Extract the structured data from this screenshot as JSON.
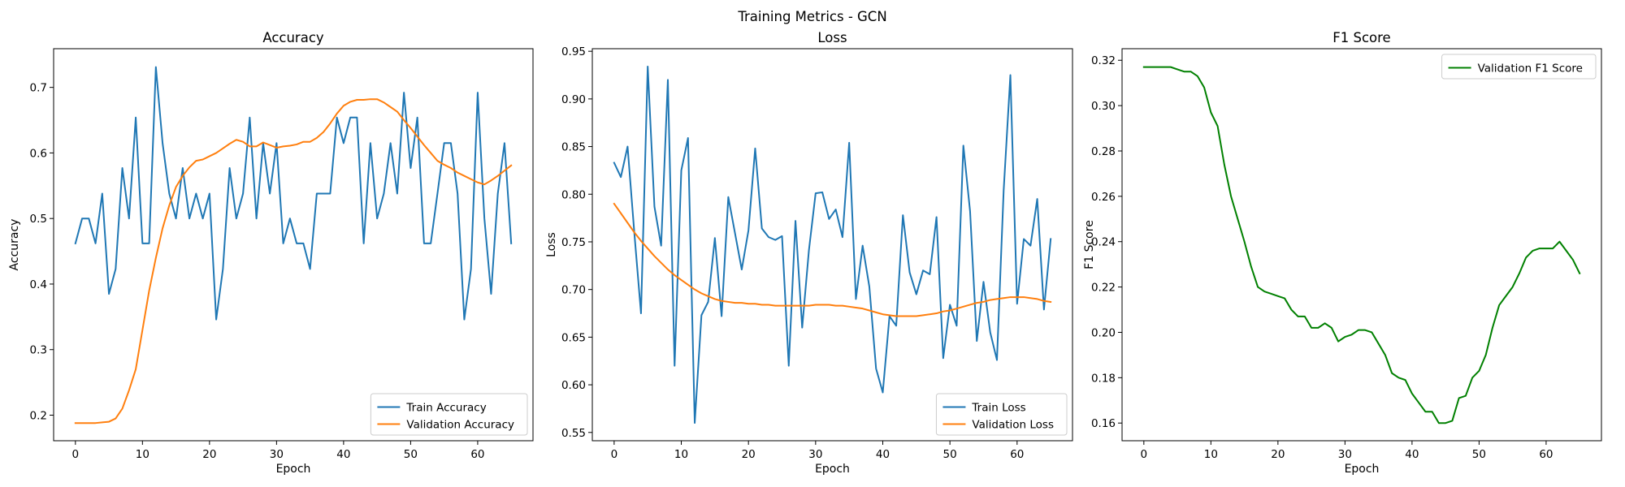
{
  "figure": {
    "suptitle": "Training Metrics - GCN"
  },
  "chart_data": [
    {
      "type": "line",
      "title": "Accuracy",
      "xlabel": "Epoch",
      "ylabel": "Accuracy",
      "xlim": [
        -3.25,
        68.25
      ],
      "ylim": [
        0.161,
        0.759
      ],
      "xticks": [
        0,
        10,
        20,
        30,
        40,
        50,
        60
      ],
      "yticks": [
        0.2,
        0.3,
        0.4,
        0.5,
        0.6,
        0.7
      ],
      "ytick_decimals": 1,
      "grid": false,
      "legend": "lower-right",
      "series": [
        {
          "name": "Train Accuracy",
          "color": "#1f77b4",
          "x": [
            0,
            1,
            2,
            3,
            4,
            5,
            6,
            7,
            8,
            9,
            10,
            11,
            12,
            13,
            14,
            15,
            16,
            17,
            18,
            19,
            20,
            21,
            22,
            23,
            24,
            25,
            26,
            27,
            28,
            29,
            30,
            31,
            32,
            33,
            34,
            35,
            36,
            37,
            38,
            39,
            40,
            41,
            42,
            43,
            44,
            45,
            46,
            47,
            48,
            49,
            50,
            51,
            52,
            53,
            54,
            55,
            56,
            57,
            58,
            59,
            60,
            61,
            62,
            63,
            64,
            65
          ],
          "y": [
            0.462,
            0.5,
            0.5,
            0.462,
            0.538,
            0.385,
            0.423,
            0.577,
            0.5,
            0.654,
            0.462,
            0.462,
            0.731,
            0.615,
            0.538,
            0.5,
            0.577,
            0.5,
            0.538,
            0.5,
            0.538,
            0.346,
            0.423,
            0.577,
            0.5,
            0.538,
            0.654,
            0.5,
            0.615,
            0.538,
            0.615,
            0.462,
            0.5,
            0.462,
            0.462,
            0.423,
            0.538,
            0.538,
            0.538,
            0.654,
            0.615,
            0.654,
            0.654,
            0.462,
            0.615,
            0.5,
            0.538,
            0.615,
            0.538,
            0.692,
            0.577,
            0.654,
            0.462,
            0.462,
            0.538,
            0.615,
            0.615,
            0.538,
            0.346,
            0.423,
            0.692,
            0.5,
            0.385,
            0.538,
            0.615,
            0.462
          ]
        },
        {
          "name": "Validation Accuracy",
          "color": "#ff7f0e",
          "x": [
            0,
            1,
            2,
            3,
            4,
            5,
            6,
            7,
            8,
            9,
            10,
            11,
            12,
            13,
            14,
            15,
            16,
            17,
            18,
            19,
            20,
            21,
            22,
            23,
            24,
            25,
            26,
            27,
            28,
            29,
            30,
            31,
            32,
            33,
            34,
            35,
            36,
            37,
            38,
            39,
            40,
            41,
            42,
            43,
            44,
            45,
            46,
            47,
            48,
            49,
            50,
            51,
            52,
            53,
            54,
            55,
            56,
            57,
            58,
            59,
            60,
            61,
            62,
            63,
            64,
            65
          ],
          "y": [
            0.188,
            0.188,
            0.188,
            0.188,
            0.189,
            0.19,
            0.195,
            0.21,
            0.238,
            0.27,
            0.33,
            0.39,
            0.44,
            0.485,
            0.52,
            0.548,
            0.565,
            0.578,
            0.588,
            0.59,
            0.595,
            0.6,
            0.607,
            0.614,
            0.62,
            0.617,
            0.61,
            0.61,
            0.616,
            0.612,
            0.608,
            0.61,
            0.611,
            0.613,
            0.617,
            0.617,
            0.623,
            0.632,
            0.645,
            0.66,
            0.672,
            0.678,
            0.681,
            0.681,
            0.682,
            0.682,
            0.677,
            0.67,
            0.663,
            0.65,
            0.638,
            0.625,
            0.612,
            0.6,
            0.588,
            0.582,
            0.577,
            0.57,
            0.565,
            0.56,
            0.555,
            0.552,
            0.558,
            0.565,
            0.573,
            0.581
          ]
        }
      ]
    },
    {
      "type": "line",
      "title": "Loss",
      "xlabel": "Epoch",
      "ylabel": "Loss",
      "xlim": [
        -3.25,
        68.25
      ],
      "ylim": [
        0.5413,
        0.9527
      ],
      "xticks": [
        0,
        10,
        20,
        30,
        40,
        50,
        60
      ],
      "yticks": [
        0.55,
        0.6,
        0.65,
        0.7,
        0.75,
        0.8,
        0.85,
        0.9,
        0.95
      ],
      "ytick_decimals": 2,
      "grid": false,
      "legend": "lower-right",
      "series": [
        {
          "name": "Train Loss",
          "color": "#1f77b4",
          "x": [
            0,
            1,
            2,
            3,
            4,
            5,
            6,
            7,
            8,
            9,
            10,
            11,
            12,
            13,
            14,
            15,
            16,
            17,
            18,
            19,
            20,
            21,
            22,
            23,
            24,
            25,
            26,
            27,
            28,
            29,
            30,
            31,
            32,
            33,
            34,
            35,
            36,
            37,
            38,
            39,
            40,
            41,
            42,
            43,
            44,
            45,
            46,
            47,
            48,
            49,
            50,
            51,
            52,
            53,
            54,
            55,
            56,
            57,
            58,
            59,
            60,
            61,
            62,
            63,
            64,
            65
          ],
          "y": [
            0.833,
            0.818,
            0.85,
            0.76,
            0.675,
            0.934,
            0.787,
            0.746,
            0.92,
            0.62,
            0.825,
            0.859,
            0.56,
            0.673,
            0.687,
            0.754,
            0.672,
            0.797,
            0.759,
            0.721,
            0.762,
            0.848,
            0.764,
            0.755,
            0.752,
            0.756,
            0.62,
            0.772,
            0.66,
            0.741,
            0.801,
            0.802,
            0.774,
            0.784,
            0.755,
            0.854,
            0.69,
            0.746,
            0.703,
            0.617,
            0.592,
            0.672,
            0.662,
            0.778,
            0.718,
            0.695,
            0.72,
            0.716,
            0.776,
            0.628,
            0.684,
            0.662,
            0.851,
            0.782,
            0.646,
            0.708,
            0.655,
            0.626,
            0.804,
            0.925,
            0.685,
            0.753,
            0.746,
            0.795,
            0.679,
            0.753
          ]
        },
        {
          "name": "Validation Loss",
          "color": "#ff7f0e",
          "x": [
            0,
            1,
            2,
            3,
            4,
            5,
            6,
            7,
            8,
            9,
            10,
            11,
            12,
            13,
            14,
            15,
            16,
            17,
            18,
            19,
            20,
            21,
            22,
            23,
            24,
            25,
            26,
            27,
            28,
            29,
            30,
            31,
            32,
            33,
            34,
            35,
            36,
            37,
            38,
            39,
            40,
            41,
            42,
            43,
            44,
            45,
            46,
            47,
            48,
            49,
            50,
            51,
            52,
            53,
            54,
            55,
            56,
            57,
            58,
            59,
            60,
            61,
            62,
            63,
            64,
            65
          ],
          "y": [
            0.79,
            0.78,
            0.77,
            0.76,
            0.751,
            0.743,
            0.735,
            0.728,
            0.721,
            0.715,
            0.71,
            0.705,
            0.7,
            0.696,
            0.693,
            0.69,
            0.688,
            0.687,
            0.686,
            0.686,
            0.685,
            0.685,
            0.684,
            0.684,
            0.683,
            0.683,
            0.683,
            0.683,
            0.683,
            0.683,
            0.684,
            0.684,
            0.684,
            0.683,
            0.683,
            0.682,
            0.681,
            0.68,
            0.678,
            0.676,
            0.674,
            0.673,
            0.672,
            0.672,
            0.672,
            0.672,
            0.673,
            0.674,
            0.675,
            0.677,
            0.678,
            0.68,
            0.682,
            0.684,
            0.686,
            0.687,
            0.689,
            0.69,
            0.691,
            0.692,
            0.692,
            0.692,
            0.691,
            0.69,
            0.688,
            0.687
          ]
        }
      ]
    },
    {
      "type": "line",
      "title": "F1 Score",
      "xlabel": "Epoch",
      "ylabel": "F1 Score",
      "xlim": [
        -3.25,
        68.25
      ],
      "ylim": [
        0.1522,
        0.3251
      ],
      "xticks": [
        0,
        10,
        20,
        30,
        40,
        50,
        60
      ],
      "yticks": [
        0.16,
        0.18,
        0.2,
        0.22,
        0.24,
        0.26,
        0.28,
        0.3,
        0.32
      ],
      "ytick_decimals": 2,
      "grid": false,
      "legend": "top-right",
      "series": [
        {
          "name": "Validation F1 Score",
          "color": "#008000",
          "x": [
            0,
            1,
            2,
            3,
            4,
            5,
            6,
            7,
            8,
            9,
            10,
            11,
            12,
            13,
            14,
            15,
            16,
            17,
            18,
            19,
            20,
            21,
            22,
            23,
            24,
            25,
            26,
            27,
            28,
            29,
            30,
            31,
            32,
            33,
            34,
            35,
            36,
            37,
            38,
            39,
            40,
            41,
            42,
            43,
            44,
            45,
            46,
            47,
            48,
            49,
            50,
            51,
            52,
            53,
            54,
            55,
            56,
            57,
            58,
            59,
            60,
            61,
            62,
            63,
            64,
            65
          ],
          "y": [
            0.317,
            0.317,
            0.317,
            0.317,
            0.317,
            0.316,
            0.315,
            0.315,
            0.313,
            0.308,
            0.297,
            0.291,
            0.274,
            0.26,
            0.25,
            0.24,
            0.229,
            0.22,
            0.218,
            0.217,
            0.216,
            0.215,
            0.21,
            0.207,
            0.207,
            0.202,
            0.202,
            0.204,
            0.202,
            0.196,
            0.198,
            0.199,
            0.201,
            0.201,
            0.2,
            0.195,
            0.19,
            0.182,
            0.18,
            0.179,
            0.173,
            0.169,
            0.165,
            0.165,
            0.16,
            0.16,
            0.161,
            0.171,
            0.172,
            0.18,
            0.183,
            0.19,
            0.202,
            0.212,
            0.216,
            0.22,
            0.226,
            0.233,
            0.236,
            0.237,
            0.237,
            0.237,
            0.24,
            0.236,
            0.232,
            0.226
          ]
        }
      ]
    }
  ]
}
